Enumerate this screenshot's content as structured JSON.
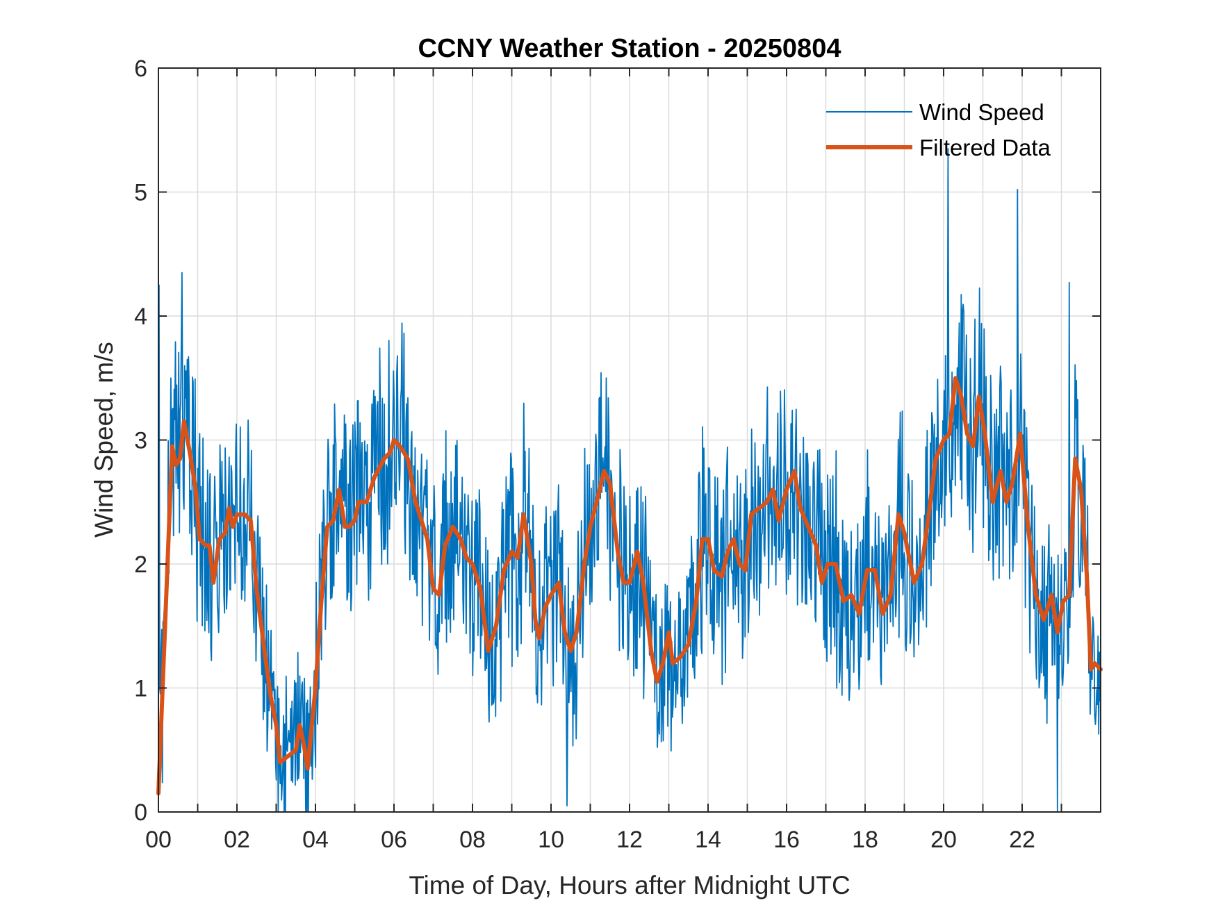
{
  "chart_data": {
    "type": "line",
    "title": "CCNY Weather Station - 20250804",
    "xlabel": "Time of Day, Hours after Midnight UTC",
    "ylabel": "Wind Speed, m/s",
    "xlim": [
      0,
      24
    ],
    "ylim": [
      0,
      6
    ],
    "x_ticks": [
      0,
      2,
      4,
      6,
      8,
      10,
      12,
      14,
      16,
      18,
      20,
      22
    ],
    "x_tick_labels": [
      "00",
      "02",
      "04",
      "06",
      "08",
      "10",
      "12",
      "14",
      "16",
      "18",
      "20",
      "22"
    ],
    "x_minor_grid_step_hours": 1,
    "y_ticks": [
      0,
      1,
      2,
      3,
      4,
      5,
      6
    ],
    "y_tick_labels": [
      "0",
      "1",
      "2",
      "3",
      "4",
      "5",
      "6"
    ],
    "grid": true,
    "legend": {
      "placement": "top-right",
      "entries": [
        {
          "label": "Wind Speed",
          "color": "#0072BD",
          "style": "thin"
        },
        {
          "label": "Filtered Data",
          "color": "#D95319",
          "style": "thick"
        }
      ]
    },
    "series": [
      {
        "name": "Wind Speed",
        "color": "#0072BD",
        "note": "raw 1-minute samples; approximate envelope read from image",
        "noise_amplitude": 0.85,
        "notable_extremes": [
          {
            "x": 0.02,
            "y": 4.25
          },
          {
            "x": 0.6,
            "y": 4.35
          },
          {
            "x": 3.05,
            "y": 0.0
          },
          {
            "x": 3.75,
            "y": 0.0
          },
          {
            "x": 10.4,
            "y": 0.05
          },
          {
            "x": 20.12,
            "y": 5.35
          },
          {
            "x": 21.88,
            "y": 5.02
          },
          {
            "x": 22.9,
            "y": 0.0
          },
          {
            "x": 23.2,
            "y": 4.27
          }
        ]
      },
      {
        "name": "Filtered Data",
        "color": "#D95319",
        "x": [
          0.0,
          0.35,
          0.45,
          0.55,
          0.65,
          0.8,
          0.95,
          1.05,
          1.2,
          1.3,
          1.4,
          1.55,
          1.7,
          1.8,
          1.9,
          2.0,
          2.2,
          2.35,
          2.5,
          2.7,
          2.85,
          3.0,
          3.1,
          3.3,
          3.5,
          3.6,
          3.7,
          3.8,
          4.0,
          4.15,
          4.3,
          4.45,
          4.6,
          4.75,
          4.85,
          5.0,
          5.1,
          5.3,
          5.5,
          5.75,
          5.9,
          6.0,
          6.15,
          6.35,
          6.55,
          6.7,
          6.85,
          7.0,
          7.15,
          7.3,
          7.5,
          7.7,
          7.85,
          8.0,
          8.2,
          8.4,
          8.6,
          8.8,
          9.0,
          9.15,
          9.3,
          9.5,
          9.6,
          9.7,
          9.85,
          10.0,
          10.2,
          10.35,
          10.5,
          10.65,
          10.85,
          11.0,
          11.2,
          11.35,
          11.5,
          11.7,
          11.85,
          12.0,
          12.2,
          12.35,
          12.55,
          12.7,
          12.85,
          13.0,
          13.1,
          13.3,
          13.5,
          13.7,
          13.85,
          14.0,
          14.15,
          14.35,
          14.5,
          14.65,
          14.8,
          14.95,
          15.1,
          15.3,
          15.5,
          15.65,
          15.8,
          16.0,
          16.2,
          16.35,
          16.55,
          16.75,
          16.9,
          17.05,
          17.25,
          17.45,
          17.65,
          17.85,
          18.05,
          18.25,
          18.45,
          18.65,
          18.85,
          19.0,
          19.25,
          19.45,
          19.6,
          19.8,
          20.0,
          20.15,
          20.3,
          20.45,
          20.6,
          20.75,
          20.9,
          21.05,
          21.25,
          21.45,
          21.6,
          21.75,
          21.95,
          22.15,
          22.35,
          22.55,
          22.75,
          22.9,
          23.05,
          23.2,
          23.35,
          23.5,
          23.65,
          23.75,
          23.85,
          24.0
        ],
        "values": [
          0.15,
          2.95,
          2.8,
          2.85,
          3.15,
          2.9,
          2.6,
          2.2,
          2.15,
          2.15,
          1.85,
          2.2,
          2.25,
          2.45,
          2.3,
          2.4,
          2.4,
          2.35,
          1.8,
          1.3,
          0.95,
          0.7,
          0.4,
          0.45,
          0.5,
          0.7,
          0.55,
          0.35,
          1.0,
          1.7,
          2.3,
          2.35,
          2.6,
          2.3,
          2.3,
          2.35,
          2.5,
          2.5,
          2.7,
          2.85,
          2.9,
          3.0,
          2.95,
          2.85,
          2.5,
          2.35,
          2.2,
          1.8,
          1.75,
          2.15,
          2.3,
          2.2,
          2.05,
          2.0,
          1.8,
          1.3,
          1.5,
          1.95,
          2.1,
          2.05,
          2.4,
          2.0,
          1.55,
          1.4,
          1.65,
          1.75,
          1.85,
          1.45,
          1.3,
          1.45,
          2.0,
          2.3,
          2.55,
          2.75,
          2.65,
          2.1,
          1.85,
          1.85,
          2.1,
          1.85,
          1.3,
          1.05,
          1.2,
          1.45,
          1.2,
          1.25,
          1.35,
          1.7,
          2.2,
          2.2,
          1.95,
          1.9,
          2.1,
          2.2,
          2.0,
          1.95,
          2.4,
          2.45,
          2.5,
          2.6,
          2.35,
          2.6,
          2.75,
          2.45,
          2.3,
          2.15,
          1.85,
          2.0,
          2.0,
          1.7,
          1.75,
          1.6,
          1.95,
          1.95,
          1.6,
          1.75,
          2.4,
          2.25,
          1.85,
          2.0,
          2.35,
          2.85,
          3.0,
          3.05,
          3.5,
          3.35,
          3.05,
          2.95,
          3.35,
          3.05,
          2.5,
          2.75,
          2.5,
          2.65,
          3.05,
          2.3,
          1.75,
          1.55,
          1.75,
          1.45,
          1.7,
          1.75,
          2.85,
          2.6,
          1.9,
          1.15,
          1.2,
          1.15
        ]
      }
    ]
  }
}
